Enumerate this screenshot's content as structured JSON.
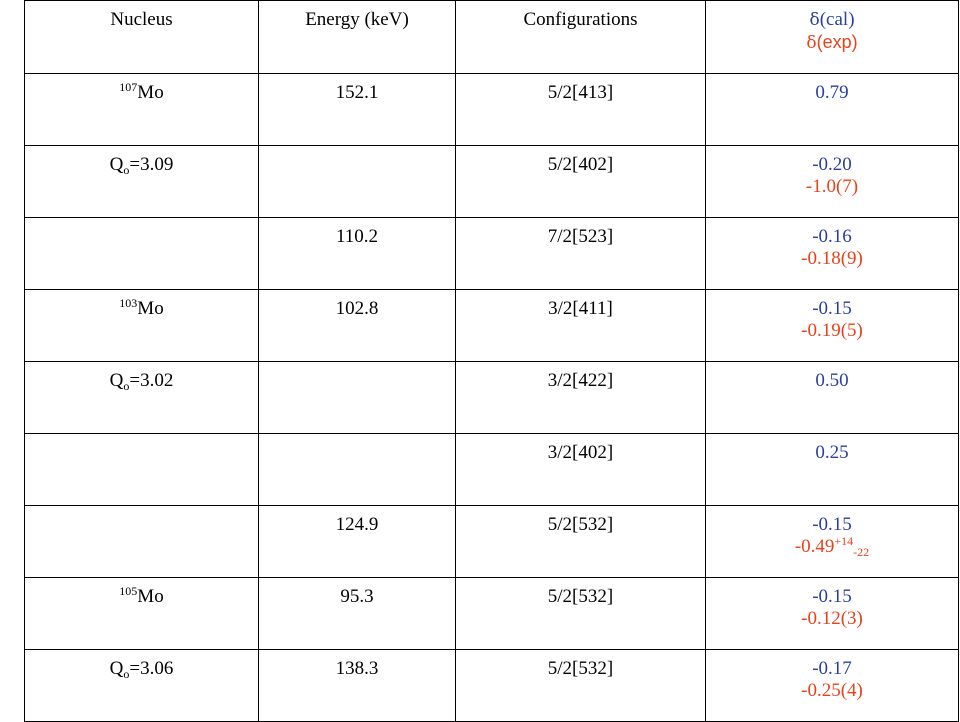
{
  "header": {
    "nucleus": "Nucleus",
    "energy": "Energy (keV)",
    "configurations": "Configurations",
    "delta_symbol": "δ",
    "cal_label": "(cal)",
    "exp_label": "(exp)"
  },
  "nuclei": {
    "mo107_mass": "107",
    "mo105_mass": "105",
    "mo103_mass": "103",
    "element": "Mo",
    "q_prefix": "Q",
    "q_sub": "o",
    "q_309": "=3.09",
    "q_302": "=3.02",
    "q_306": "=3.06"
  },
  "rows": [
    {
      "energy": "152.1",
      "config": "5/2[413]",
      "cal": "0.79",
      "exp": ""
    },
    {
      "energy": "",
      "config": "5/2[402]",
      "cal": "-0.20",
      "exp": "-1.0(7)"
    },
    {
      "energy": "110.2",
      "config": "7/2[523]",
      "cal": "-0.16",
      "exp": "-0.18(9)"
    },
    {
      "energy": "102.8",
      "config": "3/2[411]",
      "cal": "-0.15",
      "exp": "-0.19(5)"
    },
    {
      "energy": "",
      "config": "3/2[422]",
      "cal": "0.50",
      "exp": ""
    },
    {
      "energy": "",
      "config": "3/2[402]",
      "cal": "0.25",
      "exp": ""
    },
    {
      "energy": "124.9",
      "config": "5/2[532]",
      "cal": "-0.15",
      "exp_base": "-0.49",
      "exp_sup": "+14",
      "exp_sub": "-22"
    },
    {
      "energy": "95.3",
      "config": "5/2[532]",
      "cal": "-0.15",
      "exp": "-0.12(3)"
    },
    {
      "energy": "138.3",
      "config": "5/2[532]",
      "cal": "-0.17",
      "exp": "-0.25(4)"
    }
  ],
  "colors": {
    "cal": "#2a3fa0",
    "exp": "#e8421a",
    "border": "#000000"
  }
}
